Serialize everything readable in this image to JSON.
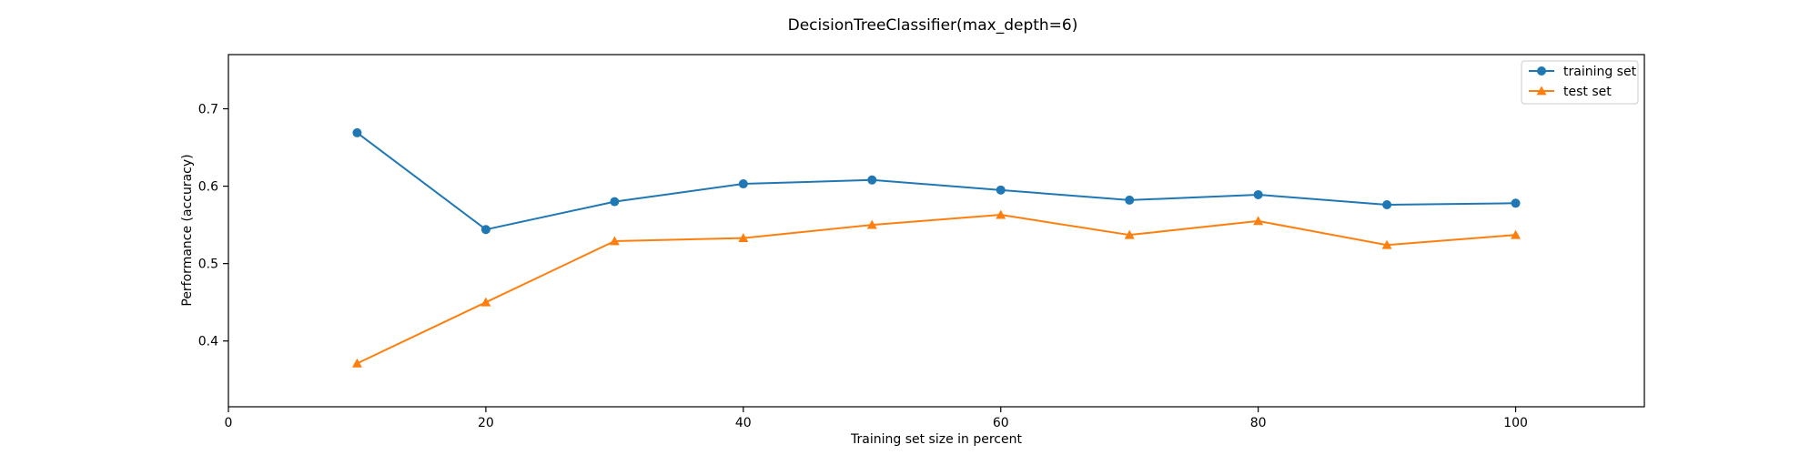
{
  "chart_data": {
    "type": "line",
    "title": "DecisionTreeClassifier(max_depth=6)",
    "xlabel": "Training set size in percent",
    "ylabel": "Performance (accuracy)",
    "xlim": [
      0,
      110
    ],
    "ylim": [
      0.315,
      0.77
    ],
    "xticks": [
      0,
      20,
      40,
      60,
      80,
      100
    ],
    "yticks": [
      0.4,
      0.5,
      0.6,
      0.7
    ],
    "x": [
      10,
      20,
      30,
      40,
      50,
      60,
      70,
      80,
      90,
      100
    ],
    "series": [
      {
        "name": "training set",
        "marker": "circle",
        "color": "#1f77b4",
        "values": [
          0.669,
          0.544,
          0.58,
          0.603,
          0.608,
          0.595,
          0.582,
          0.589,
          0.576,
          0.578
        ]
      },
      {
        "name": "test set",
        "marker": "triangle",
        "color": "#ff7f0e",
        "values": [
          0.371,
          0.45,
          0.529,
          0.533,
          0.55,
          0.563,
          0.537,
          0.555,
          0.524,
          0.537
        ]
      }
    ],
    "grid": false,
    "legend": "top-right"
  }
}
